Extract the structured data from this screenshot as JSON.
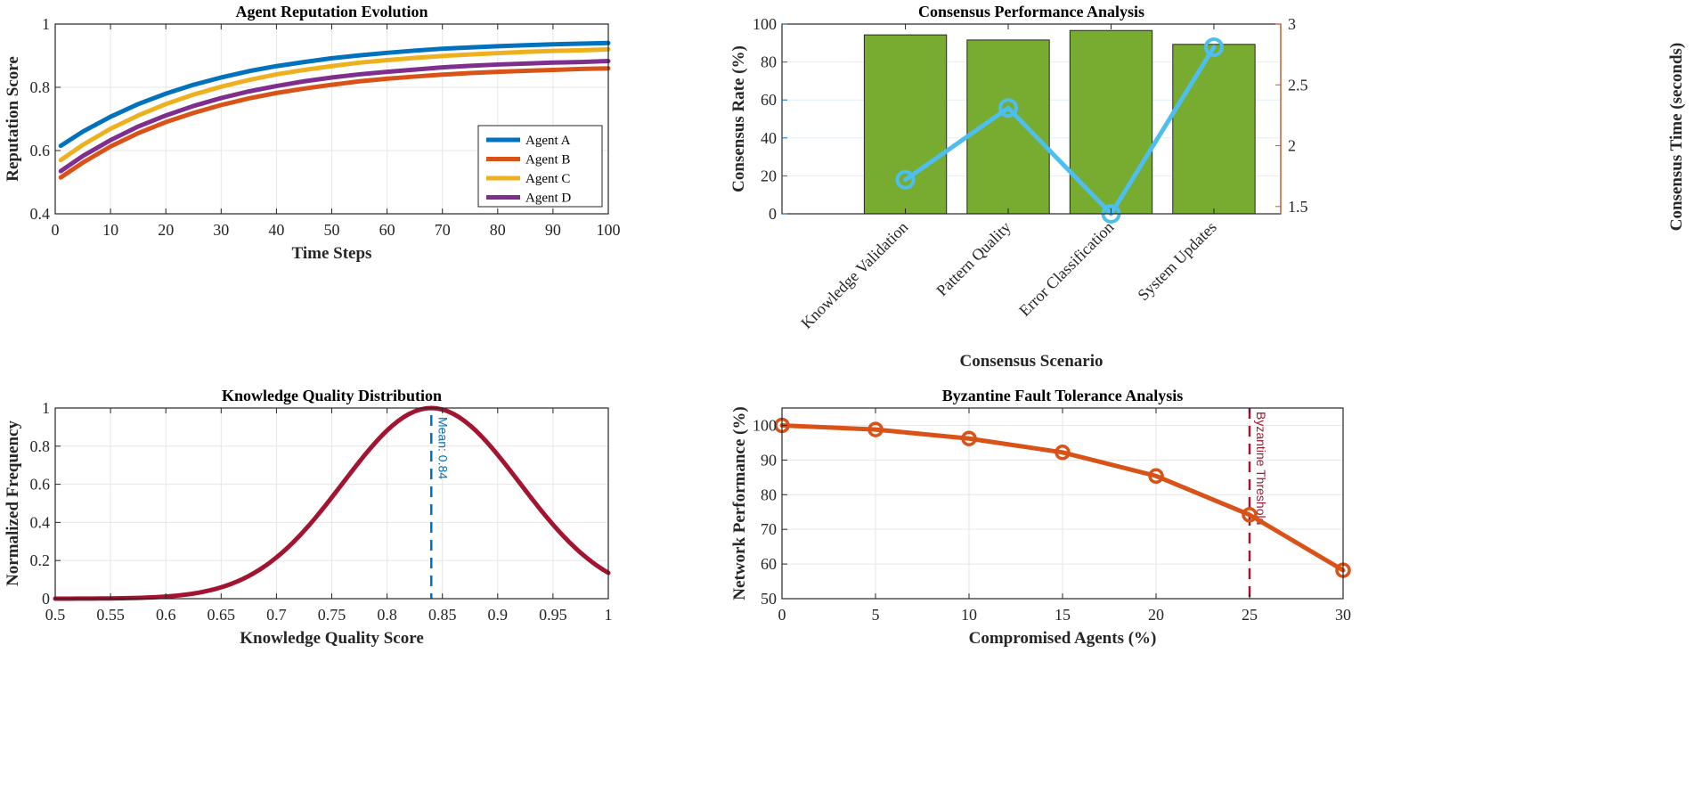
{
  "chart_data": [
    {
      "type": "line",
      "title": "Agent Reputation Evolution",
      "xlabel": "Time Steps",
      "ylabel": "Reputation Score",
      "xlim": [
        0,
        100
      ],
      "ylim": [
        0.4,
        1
      ],
      "xticks": [
        "0",
        "10",
        "20",
        "30",
        "40",
        "50",
        "60",
        "70",
        "80",
        "90",
        "100"
      ],
      "yticks": [
        "0.4",
        "0.6",
        "0.8",
        "1"
      ],
      "grid": true,
      "legend_position": "bottom-right",
      "x": [
        1,
        5,
        10,
        15,
        20,
        25,
        30,
        35,
        40,
        45,
        50,
        55,
        60,
        65,
        70,
        75,
        80,
        85,
        90,
        95,
        100
      ],
      "series": [
        {
          "name": "Agent A",
          "color": "#0072BD",
          "values": [
            0.615,
            0.66,
            0.707,
            0.747,
            0.78,
            0.808,
            0.831,
            0.851,
            0.867,
            0.88,
            0.892,
            0.901,
            0.909,
            0.916,
            0.922,
            0.926,
            0.93,
            0.933,
            0.936,
            0.938,
            0.94
          ]
        },
        {
          "name": "Agent B",
          "color": "#D95319",
          "values": [
            0.515,
            0.562,
            0.613,
            0.655,
            0.69,
            0.719,
            0.744,
            0.765,
            0.782,
            0.796,
            0.808,
            0.819,
            0.827,
            0.834,
            0.84,
            0.845,
            0.849,
            0.852,
            0.855,
            0.858,
            0.86
          ]
        },
        {
          "name": "Agent C",
          "color": "#EDB120",
          "values": [
            0.57,
            0.618,
            0.669,
            0.711,
            0.747,
            0.777,
            0.802,
            0.823,
            0.841,
            0.855,
            0.867,
            0.878,
            0.886,
            0.893,
            0.899,
            0.904,
            0.908,
            0.912,
            0.915,
            0.917,
            0.92
          ]
        },
        {
          "name": "Agent D",
          "color": "#7E2F8E",
          "values": [
            0.535,
            0.583,
            0.633,
            0.676,
            0.711,
            0.741,
            0.766,
            0.787,
            0.804,
            0.819,
            0.831,
            0.841,
            0.849,
            0.856,
            0.863,
            0.868,
            0.872,
            0.875,
            0.878,
            0.88,
            0.883
          ]
        }
      ]
    },
    {
      "type": "bar",
      "title": "Consensus Performance Analysis",
      "xlabel": "Consensus Scenario",
      "ylabel": "Consensus Rate (%)",
      "ylabel_right": "Consensus Time (seconds)",
      "categories": [
        "Knowledge Validation",
        "Pattern Quality",
        "Error Classification",
        "System Updates"
      ],
      "xlim": [
        -0.2,
        4.65
      ],
      "ylim": [
        0,
        100
      ],
      "ylim_right": [
        1.44,
        3
      ],
      "yticks": [
        "0",
        "20",
        "40",
        "60",
        "80",
        "100"
      ],
      "yticks_right": [
        "1.5",
        "2",
        "2.5",
        "3"
      ],
      "grid": true,
      "series": [
        {
          "name": "Consensus Rate",
          "axis": "left",
          "kind": "bar",
          "color": "#77AC30",
          "values": [
            94.3,
            91.6,
            96.6,
            89.3
          ]
        },
        {
          "name": "Consensus Time",
          "axis": "right",
          "kind": "line",
          "color": "#4DBEEE",
          "values": [
            1.72,
            2.31,
            1.44,
            2.81
          ]
        }
      ],
      "left_axis_color": "#0072BD",
      "right_axis_color": "#D95319"
    },
    {
      "type": "line",
      "title": "Knowledge Quality Distribution",
      "xlabel": "Knowledge Quality Score",
      "ylabel": "Normalized Frequency",
      "xlim": [
        0.5,
        1
      ],
      "ylim": [
        0,
        1
      ],
      "xticks": [
        "0.5",
        "0.55",
        "0.6",
        "0.65",
        "0.7",
        "0.75",
        "0.8",
        "0.85",
        "0.9",
        "0.95",
        "1"
      ],
      "yticks": [
        "0",
        "0.2",
        "0.4",
        "0.6",
        "0.8",
        "1"
      ],
      "grid": true,
      "distribution": {
        "kind": "gaussian",
        "mean": 0.84,
        "std": 0.08,
        "color": "#A2142F"
      },
      "mean_line": {
        "value": 0.84,
        "label": "Mean: 0.84",
        "color": "#0072BD"
      }
    },
    {
      "type": "line",
      "title": "Byzantine Fault Tolerance Analysis",
      "xlabel": "Compromised Agents (%)",
      "ylabel": "Network Performance (%)",
      "xlim": [
        0,
        30
      ],
      "ylim": [
        50,
        105
      ],
      "xticks": [
        "0",
        "5",
        "10",
        "15",
        "20",
        "25",
        "30"
      ],
      "yticks": [
        "50",
        "60",
        "70",
        "80",
        "90",
        "100"
      ],
      "grid": true,
      "x": [
        0,
        5,
        10,
        15,
        20,
        25,
        30
      ],
      "series": [
        {
          "name": "Network Performance",
          "color": "#D95319",
          "values": [
            100,
            98.8,
            96.2,
            92.2,
            85.4,
            74.2,
            58.2
          ]
        }
      ],
      "threshold": {
        "value": 25,
        "label": "Byzantine Threshold",
        "color": "#A2142F"
      }
    }
  ]
}
